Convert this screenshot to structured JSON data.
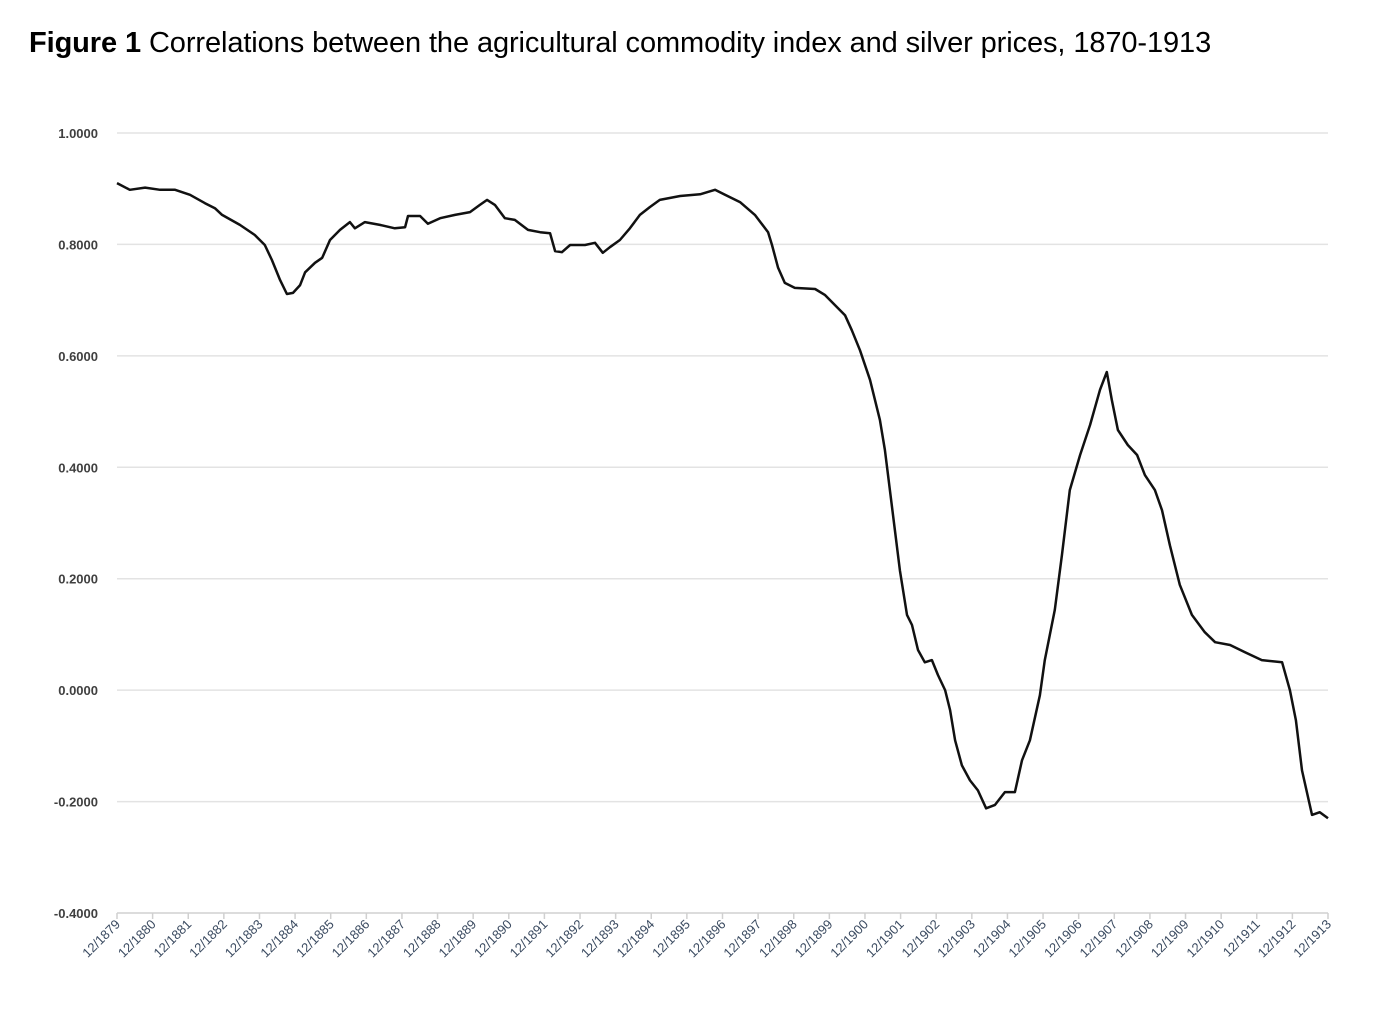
{
  "title": {
    "label": "Figure 1",
    "text": "Correlations between the agricultural commodity index and silver prices, 1870-1913"
  },
  "chart_data": {
    "type": "line",
    "title": "Figure 1 Correlations between the agricultural commodity index and silver prices, 1870-1913",
    "xlabel": "",
    "ylabel": "",
    "ylim": [
      -0.4,
      1.0
    ],
    "xlim": [
      1879.92,
      1913.92
    ],
    "grid": "horizontal",
    "legend": "none",
    "y_ticks": [
      "1.0000",
      "0.8000",
      "0.6000",
      "0.4000",
      "0.2000",
      "0.0000",
      "-0.2000",
      "-0.4000"
    ],
    "y_tick_values": [
      1.0,
      0.8,
      0.6,
      0.4,
      0.2,
      0.0,
      -0.2,
      -0.4
    ],
    "x_ticks": [
      "12/1879",
      "12/1880",
      "12/1881",
      "12/1882",
      "12/1883",
      "12/1884",
      "12/1885",
      "12/1886",
      "12/1887",
      "12/1888",
      "12/1889",
      "12/1890",
      "12/1891",
      "12/1892",
      "12/1893",
      "12/1894",
      "12/1895",
      "12/1896",
      "12/1897",
      "12/1898",
      "12/1899",
      "12/1900",
      "12/1901",
      "12/1902",
      "12/1903",
      "12/1904",
      "12/1905",
      "12/1906",
      "12/1907",
      "12/1908",
      "12/1909",
      "12/1910",
      "12/1911",
      "12/1912",
      "12/1913"
    ],
    "series": [
      {
        "name": "Correlation",
        "color": "#111111",
        "x": [
          1879.92,
          1880.28,
          1880.71,
          1881.13,
          1881.55,
          1881.97,
          1882.39,
          1882.67,
          1882.87,
          1883.37,
          1883.79,
          1884.07,
          1884.27,
          1884.5,
          1884.69,
          1884.86,
          1885.06,
          1885.2,
          1885.48,
          1885.68,
          1885.9,
          1886.18,
          1886.46,
          1886.6,
          1886.88,
          1887.3,
          1887.72,
          1888.01,
          1888.09,
          1888.43,
          1888.65,
          1888.99,
          1889.41,
          1889.83,
          1890.11,
          1890.31,
          1890.53,
          1890.81,
          1891.09,
          1891.46,
          1891.8,
          1892.08,
          1892.22,
          1892.41,
          1892.64,
          1893.06,
          1893.34,
          1893.56,
          1893.76,
          1894.04,
          1894.32,
          1894.6,
          1894.88,
          1895.16,
          1895.73,
          1896.29,
          1896.71,
          1896.99,
          1897.41,
          1897.83,
          1898.2,
          1898.31,
          1898.48,
          1898.67,
          1898.95,
          1899.52,
          1899.8,
          1900.08,
          1900.36,
          1900.55,
          1900.78,
          1901.06,
          1901.34,
          1901.48,
          1901.62,
          1901.76,
          1901.9,
          1902.1,
          1902.24,
          1902.41,
          1902.6,
          1902.8,
          1902.97,
          1903.17,
          1903.31,
          1903.45,
          1903.64,
          1903.87,
          1904.09,
          1904.32,
          1904.57,
          1904.85,
          1905.13,
          1905.33,
          1905.55,
          1905.83,
          1905.97,
          1906.25,
          1906.45,
          1906.67,
          1906.96,
          1907.24,
          1907.52,
          1907.71,
          1907.85,
          1908.02,
          1908.3,
          1908.56,
          1908.78,
          1909.06,
          1909.26,
          1909.48,
          1909.76,
          1910.1,
          1910.46,
          1910.75,
          1911.17,
          1911.59,
          1912.06,
          1912.63,
          1912.85,
          1913.02,
          1913.19,
          1913.47,
          1913.69,
          1913.92
        ],
        "y": [
          0.91,
          0.898,
          0.902,
          0.898,
          0.898,
          0.889,
          0.874,
          0.865,
          0.853,
          0.835,
          0.817,
          0.799,
          0.772,
          0.736,
          0.711,
          0.713,
          0.727,
          0.75,
          0.767,
          0.776,
          0.808,
          0.826,
          0.84,
          0.829,
          0.84,
          0.835,
          0.829,
          0.831,
          0.851,
          0.851,
          0.837,
          0.847,
          0.853,
          0.858,
          0.871,
          0.88,
          0.871,
          0.847,
          0.844,
          0.826,
          0.822,
          0.82,
          0.788,
          0.786,
          0.799,
          0.799,
          0.803,
          0.785,
          0.795,
          0.808,
          0.829,
          0.853,
          0.867,
          0.88,
          0.887,
          0.89,
          0.898,
          0.889,
          0.876,
          0.853,
          0.822,
          0.799,
          0.758,
          0.731,
          0.722,
          0.72,
          0.709,
          0.691,
          0.673,
          0.646,
          0.61,
          0.557,
          0.485,
          0.431,
          0.359,
          0.287,
          0.215,
          0.135,
          0.117,
          0.072,
          0.05,
          0.054,
          0.027,
          0.0,
          -0.036,
          -0.09,
          -0.135,
          -0.162,
          -0.18,
          -0.212,
          -0.206,
          -0.183,
          -0.183,
          -0.126,
          -0.09,
          -0.009,
          0.054,
          0.144,
          0.242,
          0.359,
          0.422,
          0.476,
          0.539,
          0.571,
          0.521,
          0.467,
          0.44,
          0.422,
          0.386,
          0.359,
          0.323,
          0.26,
          0.189,
          0.135,
          0.104,
          0.086,
          0.081,
          0.068,
          0.054,
          0.05,
          0.0,
          -0.054,
          -0.144,
          -0.224,
          -0.219,
          -0.23
        ]
      }
    ]
  }
}
